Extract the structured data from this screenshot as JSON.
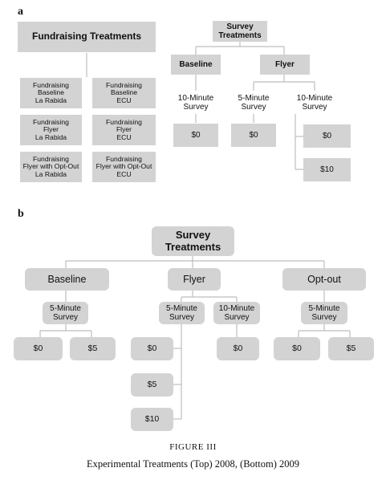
{
  "panel_a": {
    "label": "a",
    "fundraising": {
      "header": "Fundraising Treatments",
      "boxes": [
        "Fundraising\nBaseline\nLa Rabida",
        "Fundraising\nBaseline\nECU",
        "Fundraising\nFlyer\nLa Rabida",
        "Fundraising\nFlyer\nECU",
        "Fundraising\nFlyer with Opt-Out\nLa Rabida",
        "Fundraising\nFlyer with Opt-Out\nECU"
      ]
    },
    "survey": {
      "root": "Survey\nTreatments",
      "baseline": "Baseline",
      "flyer": "Flyer",
      "baseline_survey": "10-Minute\nSurvey",
      "flyer_survey_5": "5-Minute\nSurvey",
      "flyer_survey_10": "10-Minute\nSurvey",
      "payments": [
        "$0",
        "$0",
        "$0",
        "$10"
      ]
    }
  },
  "panel_b": {
    "label": "b",
    "root": "Survey\nTreatments",
    "baseline": "Baseline",
    "flyer": "Flyer",
    "optout": "Opt-out",
    "baseline_survey": "5-Minute\nSurvey",
    "flyer_survey_5": "5-Minute\nSurvey",
    "flyer_survey_10": "10-Minute\nSurvey",
    "optout_survey": "5-Minute\nSurvey",
    "baseline_payments": [
      "$0",
      "$5"
    ],
    "flyer5_payments": [
      "$0",
      "$5",
      "$10"
    ],
    "flyer10_payments": [
      "$0"
    ],
    "optout_payments": [
      "$0",
      "$5"
    ]
  },
  "caption": {
    "figure": "FIGURE III",
    "text": "Experimental Treatments (Top) 2008, (Bottom) 2009"
  }
}
